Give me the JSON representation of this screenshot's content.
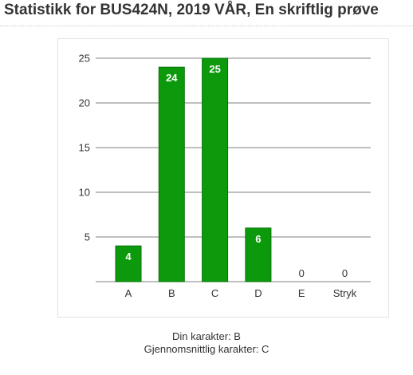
{
  "page": {
    "title": "Statistikk for BUS424N, 2019 VÅR, En skriftlig prøve"
  },
  "summary": {
    "grade_label": "Din karakter: B",
    "average_label": "Gjennomsnittlig karakter: C"
  },
  "colors": {
    "bar_fill": "#0c9a0c",
    "bar_stroke": "#067306",
    "grid": "#555555",
    "axis_text": "#333333",
    "bar_label_inside": "#ffffff",
    "bar_label_outside": "#333333"
  },
  "chart_data": {
    "type": "bar",
    "title": "",
    "xlabel": "",
    "ylabel": "",
    "categories": [
      "A",
      "B",
      "C",
      "D",
      "E",
      "Stryk"
    ],
    "values": [
      4,
      24,
      25,
      6,
      0,
      0
    ],
    "ylim": [
      0,
      25
    ],
    "yticks": [
      5,
      10,
      15,
      20,
      25
    ],
    "grid": true,
    "data_labels": true
  }
}
